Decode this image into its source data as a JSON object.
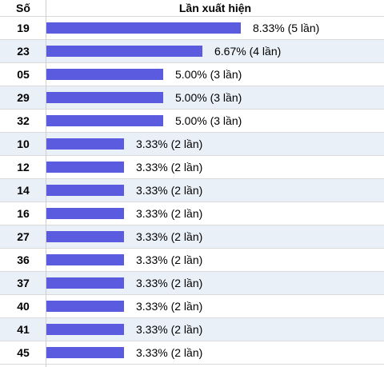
{
  "header": {
    "col_number": "Số",
    "col_frequency": "Lần xuất hiện"
  },
  "chart_data": {
    "type": "bar",
    "orientation": "horizontal",
    "bar_color": "#5b5be0",
    "row_alt_color": "#eaf0f8",
    "xlim": [
      0,
      8.33
    ],
    "categories": [
      "19",
      "23",
      "05",
      "29",
      "32",
      "10",
      "12",
      "14",
      "16",
      "27",
      "36",
      "37",
      "40",
      "41",
      "45"
    ],
    "values": [
      8.33,
      6.67,
      5.0,
      5.0,
      5.0,
      3.33,
      3.33,
      3.33,
      3.33,
      3.33,
      3.33,
      3.33,
      3.33,
      3.33,
      3.33
    ],
    "labels": [
      "8.33% (5 lần)",
      "6.67% (4 lần)",
      "5.00% (3 lần)",
      "5.00% (3 lần)",
      "5.00% (3 lần)",
      "3.33% (2 lần)",
      "3.33% (2 lần)",
      "3.33% (2 lần)",
      "3.33% (2 lần)",
      "3.33% (2 lần)",
      "3.33% (2 lần)",
      "3.33% (2 lần)",
      "3.33% (2 lần)",
      "3.33% (2 lần)",
      "3.33% (2 lần)"
    ]
  }
}
